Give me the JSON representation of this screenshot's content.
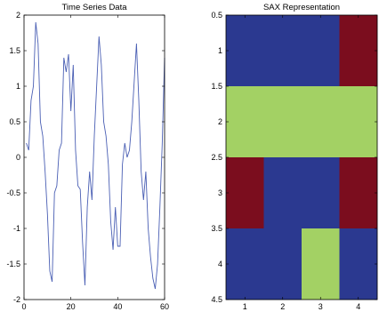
{
  "chart_data": [
    {
      "type": "line",
      "title": "Time Series Data",
      "xlim": [
        0,
        60
      ],
      "ylim": [
        -2,
        2
      ],
      "xticks": [
        "0",
        "20",
        "40",
        "60"
      ],
      "yticks": [
        "2",
        "1.5",
        "1",
        "0.5",
        "0",
        "-0.5",
        "-1",
        "-1.5",
        "-2"
      ],
      "grid": false,
      "series": [
        {
          "color": "#4a5fb4",
          "x": [
            1,
            2,
            3,
            4,
            5,
            6,
            7,
            8,
            9,
            10,
            11,
            12,
            13,
            14,
            15,
            16,
            17,
            18,
            19,
            20,
            21,
            22,
            23,
            24,
            25,
            26,
            27,
            28,
            29,
            30,
            31,
            32,
            33,
            34,
            35,
            36,
            37,
            38,
            39,
            40,
            41,
            42,
            43,
            44,
            45,
            46,
            47,
            48,
            49,
            50,
            51,
            52,
            53,
            54,
            55,
            56,
            57,
            58,
            59,
            60
          ],
          "y": [
            0.2,
            0.1,
            0.8,
            1.0,
            1.9,
            1.6,
            0.5,
            0.3,
            -0.2,
            -0.8,
            -1.6,
            -1.75,
            -0.5,
            -0.4,
            0.1,
            0.2,
            1.4,
            1.2,
            1.45,
            0.65,
            1.3,
            0.1,
            -0.4,
            -0.45,
            -1.2,
            -1.8,
            -0.7,
            -0.2,
            -0.6,
            0.3,
            1.0,
            1.7,
            1.3,
            0.5,
            0.3,
            -0.1,
            -0.9,
            -1.3,
            -0.7,
            -1.25,
            -1.25,
            -0.1,
            0.2,
            0.0,
            0.1,
            0.5,
            1.05,
            1.6,
            0.8,
            -0.2,
            -0.6,
            -0.2,
            -1.0,
            -1.4,
            -1.7,
            -1.85,
            -1.5,
            -0.7,
            0.2,
            1.4
          ]
        }
      ]
    },
    {
      "type": "heatmap",
      "title": "SAX Representation",
      "xlim": [
        0.5,
        4.5
      ],
      "ylim": [
        0.5,
        4.5
      ],
      "y_reversed": true,
      "xticks": [
        "1",
        "2",
        "3",
        "4"
      ],
      "yticks": [
        "0.5",
        "1",
        "1.5",
        "2",
        "2.5",
        "3",
        "3.5",
        "4",
        "4.5"
      ],
      "colors": {
        "1": "#2b3990",
        "2": "#a3d164",
        "3": "#7b0d1e"
      },
      "grid": [
        [
          1,
          1,
          1,
          3
        ],
        [
          2,
          2,
          2,
          2
        ],
        [
          3,
          1,
          1,
          3
        ],
        [
          1,
          1,
          2,
          1
        ]
      ]
    }
  ]
}
